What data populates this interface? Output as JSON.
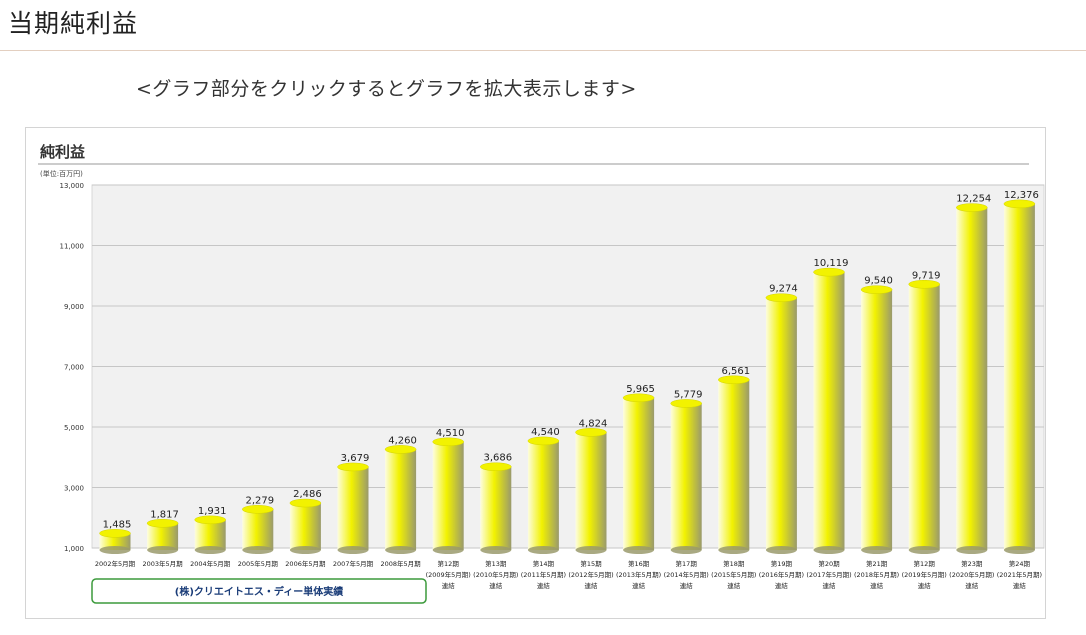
{
  "page": {
    "title": "当期純利益",
    "hint": "<グラフ部分をクリックするとグラフを拡大表示します>"
  },
  "colors": {
    "bar_light": "#fdfde0",
    "bar_main": "#f2f200",
    "bar_dark": "#9a9a6c",
    "grid": "#c6c6c6",
    "plot_bg": "#f1f1f1",
    "legend_border": "#3b9a3b",
    "legend_text": "#1a3c78"
  },
  "chart_data": {
    "type": "bar",
    "title": "純利益",
    "unit_label": "(単位:百万円)",
    "ylim": [
      1000,
      13000
    ],
    "yticks": [
      "1,000",
      "3,000",
      "5,000",
      "7,000",
      "9,000",
      "11,000",
      "13,000"
    ],
    "categories": [
      [
        "2002年5月期"
      ],
      [
        "2003年5月期"
      ],
      [
        "2004年5月期"
      ],
      [
        "2005年5月期"
      ],
      [
        "2006年5月期"
      ],
      [
        "2007年5月期"
      ],
      [
        "2008年5月期"
      ],
      [
        "第12期",
        "(2009年5月期)",
        "連結"
      ],
      [
        "第13期",
        "(2010年5月期)",
        "連結"
      ],
      [
        "第14期",
        "(2011年5月期)",
        "連結"
      ],
      [
        "第15期",
        "(2012年5月期)",
        "連結"
      ],
      [
        "第16期",
        "(2013年5月期)",
        "連結"
      ],
      [
        "第17期",
        "(2014年5月期)",
        "連結"
      ],
      [
        "第18期",
        "(2015年5月期)",
        "連結"
      ],
      [
        "第19期",
        "(2016年5月期)",
        "連結"
      ],
      [
        "第20期",
        "(2017年5月期)",
        "連結"
      ],
      [
        "第21期",
        "(2018年5月期)",
        "連結"
      ],
      [
        "第12期",
        "(2019年5月期)",
        "連結"
      ],
      [
        "第23期",
        "(2020年5月期)",
        "連結"
      ],
      [
        "第24期",
        "(2021年5月期)",
        "連結"
      ]
    ],
    "values": [
      1485,
      1817,
      1931,
      2279,
      2486,
      3679,
      4260,
      4510,
      3686,
      4540,
      4824,
      5965,
      5779,
      6561,
      9274,
      10119,
      9540,
      9719,
      12254,
      12376
    ],
    "value_labels": [
      "1,485",
      "1,817",
      "1,931",
      "2,279",
      "2,486",
      "3,679",
      "4,260",
      "4,510",
      "3,686",
      "4,540",
      "4,824",
      "5,965",
      "5,779",
      "6,561",
      "9,274",
      "10,119",
      "9,540",
      "9,719",
      "12,254",
      "12,376"
    ],
    "annotation": "(株)クリエイトエス・ディー単体実績",
    "annotation_span": [
      0,
      6
    ]
  }
}
